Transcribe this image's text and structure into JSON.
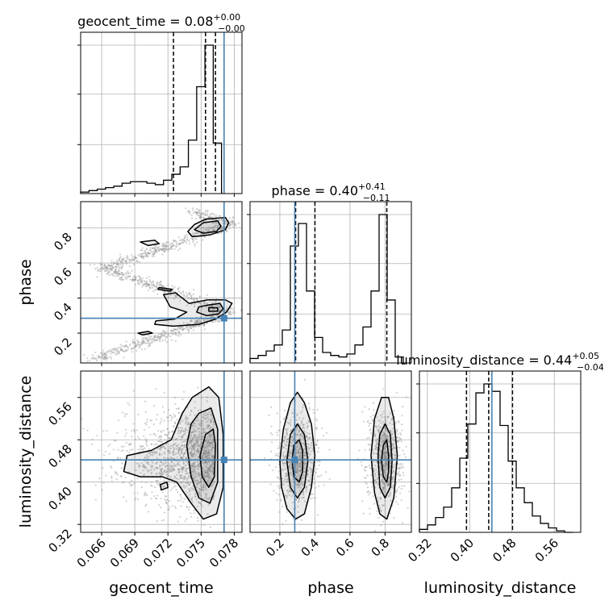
{
  "chart_data": {
    "type": "corner",
    "parameters": [
      {
        "name": "geocent_time",
        "title_main": "geocent_time = 0.08",
        "title_sup": "+0.00",
        "title_sub": "−0.00",
        "truth": 0.07708,
        "range": [
          0.0641,
          0.0787
        ],
        "ticks": [
          0.066,
          0.069,
          0.072,
          0.075,
          0.078
        ],
        "tick_labels": [
          "0.066",
          "0.069",
          "0.072",
          "0.075",
          "0.078"
        ],
        "quantiles": [
          0.0725,
          0.0754,
          0.0763
        ]
      },
      {
        "name": "phase",
        "title_main": "phase = 0.40",
        "title_sup": "+0.41",
        "title_sub": "−0.11",
        "truth": 0.285,
        "range": [
          0.03,
          0.95
        ],
        "ticks": [
          0.2,
          0.4,
          0.6,
          0.8
        ],
        "tick_labels": [
          "0.2",
          "0.4",
          "0.6",
          "0.8"
        ],
        "quantiles": [
          0.29,
          0.4,
          0.81
        ]
      },
      {
        "name": "luminosity_distance",
        "title_main": "luminosity_distance = 0.44",
        "title_sup": "+0.05",
        "title_sub": "−0.04",
        "truth": 0.442,
        "range": [
          0.305,
          0.61
        ],
        "ticks": [
          0.32,
          0.4,
          0.48,
          0.56
        ],
        "tick_labels": [
          "0.32",
          "0.40",
          "0.48",
          "0.56"
        ],
        "quantiles": [
          0.394,
          0.436,
          0.481
        ]
      }
    ],
    "histograms": [
      {
        "param": "geocent_time",
        "bin_edges": [
          0.0641,
          0.06485,
          0.0656,
          0.06635,
          0.0671,
          0.06785,
          0.0686,
          0.06935,
          0.0701,
          0.07085,
          0.0716,
          0.07235,
          0.0731,
          0.07385,
          0.0746,
          0.07535,
          0.0761,
          0.07685
        ],
        "counts": [
          0.01,
          0.02,
          0.03,
          0.04,
          0.05,
          0.07,
          0.08,
          0.08,
          0.07,
          0.06,
          0.09,
          0.13,
          0.18,
          0.36,
          0.72,
          1.0,
          0.34
        ]
      },
      {
        "param": "phase",
        "bin_edges": [
          0.03,
          0.076,
          0.122,
          0.168,
          0.214,
          0.26,
          0.306,
          0.352,
          0.398,
          0.444,
          0.49,
          0.536,
          0.582,
          0.628,
          0.674,
          0.72,
          0.766,
          0.812,
          0.858,
          0.904
        ],
        "counts": [
          0.03,
          0.05,
          0.08,
          0.12,
          0.22,
          0.78,
          0.93,
          0.48,
          0.17,
          0.07,
          0.05,
          0.04,
          0.06,
          0.12,
          0.24,
          0.48,
          0.99,
          0.42,
          0.04
        ]
      },
      {
        "param": "luminosity_distance",
        "bin_edges": [
          0.305,
          0.3203,
          0.3355,
          0.3508,
          0.366,
          0.3813,
          0.3965,
          0.4118,
          0.427,
          0.4423,
          0.4575,
          0.4728,
          0.488,
          0.5033,
          0.5185,
          0.5338,
          0.549,
          0.5643,
          0.5795,
          0.595
        ],
        "counts": [
          0.02,
          0.05,
          0.1,
          0.17,
          0.3,
          0.5,
          0.73,
          0.94,
          1.0,
          0.95,
          0.72,
          0.48,
          0.3,
          0.2,
          0.11,
          0.06,
          0.03,
          0.01,
          0.0
        ]
      }
    ],
    "contours_2d": [
      {
        "x": "geocent_time",
        "y": "phase",
        "levels": [
          [
            [
              0.0754,
              0.85
            ],
            [
              0.0772,
              0.86
            ],
            [
              0.0775,
              0.83
            ],
            [
              0.0772,
              0.79
            ],
            [
              0.0758,
              0.76
            ],
            [
              0.0742,
              0.75
            ],
            [
              0.0738,
              0.78
            ],
            [
              0.0744,
              0.82
            ]
          ],
          [
            [
              0.0752,
              0.83
            ],
            [
              0.0765,
              0.84
            ],
            [
              0.0768,
              0.81
            ],
            [
              0.0764,
              0.78
            ],
            [
              0.0752,
              0.77
            ],
            [
              0.0744,
              0.79
            ]
          ],
          [
            [
              0.0739,
              0.37
            ],
            [
              0.0756,
              0.39
            ],
            [
              0.0772,
              0.39
            ],
            [
              0.0778,
              0.37
            ],
            [
              0.0773,
              0.32
            ],
            [
              0.0763,
              0.28
            ],
            [
              0.0748,
              0.25
            ],
            [
              0.0725,
              0.24
            ],
            [
              0.0708,
              0.25
            ],
            [
              0.0709,
              0.27
            ],
            [
              0.0726,
              0.28
            ],
            [
              0.0737,
              0.32
            ],
            [
              0.0722,
              0.35
            ],
            [
              0.0716,
              0.42
            ],
            [
              0.0727,
              0.43
            ]
          ],
          [
            [
              0.0756,
              0.36
            ],
            [
              0.0767,
              0.37
            ],
            [
              0.077,
              0.34
            ],
            [
              0.0766,
              0.31
            ],
            [
              0.0755,
              0.3
            ],
            [
              0.0746,
              0.32
            ],
            [
              0.0748,
              0.35
            ]
          ],
          [
            [
              0.0757,
              0.345
            ],
            [
              0.0765,
              0.345
            ],
            [
              0.0765,
              0.325
            ],
            [
              0.0757,
              0.325
            ]
          ],
          [
            [
              0.0693,
              0.2
            ],
            [
              0.0702,
              0.21
            ],
            [
              0.0706,
              0.2
            ],
            [
              0.0697,
              0.19
            ]
          ],
          [
            [
              0.0695,
              0.72
            ],
            [
              0.0708,
              0.73
            ],
            [
              0.0712,
              0.71
            ],
            [
              0.0702,
              0.7
            ]
          ],
          [
            [
              0.0712,
              0.46
            ],
            [
              0.0724,
              0.45
            ],
            [
              0.0722,
              0.44
            ],
            [
              0.0711,
              0.45
            ]
          ]
        ]
      },
      {
        "x": "geocent_time",
        "y": "luminosity_distance",
        "levels": [
          [
            [
              0.0742,
              0.56
            ],
            [
              0.0757,
              0.58
            ],
            [
              0.0766,
              0.56
            ],
            [
              0.077,
              0.49
            ],
            [
              0.077,
              0.39
            ],
            [
              0.0764,
              0.34
            ],
            [
              0.0752,
              0.33
            ],
            [
              0.0741,
              0.36
            ],
            [
              0.0728,
              0.4
            ],
            [
              0.0715,
              0.41
            ],
            [
              0.0695,
              0.41
            ],
            [
              0.068,
              0.42
            ],
            [
              0.0683,
              0.45
            ],
            [
              0.0705,
              0.46
            ],
            [
              0.0723,
              0.48
            ],
            [
              0.0733,
              0.53
            ]
          ],
          [
            [
              0.0748,
              0.53
            ],
            [
              0.0759,
              0.54
            ],
            [
              0.0765,
              0.5
            ],
            [
              0.0765,
              0.4
            ],
            [
              0.0758,
              0.36
            ],
            [
              0.0748,
              0.37
            ],
            [
              0.0741,
              0.41
            ],
            [
              0.0737,
              0.47
            ],
            [
              0.0741,
              0.51
            ]
          ],
          [
            [
              0.0754,
              0.49
            ],
            [
              0.0761,
              0.5
            ],
            [
              0.0763,
              0.47
            ],
            [
              0.0762,
              0.41
            ],
            [
              0.0757,
              0.39
            ],
            [
              0.0751,
              0.41
            ],
            [
              0.0749,
              0.45
            ]
          ],
          [
            [
              0.0713,
              0.395
            ],
            [
              0.0719,
              0.4
            ],
            [
              0.072,
              0.39
            ],
            [
              0.0714,
              0.385
            ]
          ]
        ]
      },
      {
        "x": "phase",
        "y": "luminosity_distance",
        "levels": [
          [
            [
              0.2,
              0.44
            ],
            [
              0.22,
              0.5
            ],
            [
              0.26,
              0.55
            ],
            [
              0.3,
              0.57
            ],
            [
              0.34,
              0.55
            ],
            [
              0.38,
              0.51
            ],
            [
              0.4,
              0.45
            ],
            [
              0.38,
              0.39
            ],
            [
              0.34,
              0.34
            ],
            [
              0.29,
              0.33
            ],
            [
              0.24,
              0.35
            ],
            [
              0.21,
              0.39
            ]
          ],
          [
            [
              0.24,
              0.44
            ],
            [
              0.26,
              0.49
            ],
            [
              0.3,
              0.51
            ],
            [
              0.34,
              0.49
            ],
            [
              0.36,
              0.44
            ],
            [
              0.34,
              0.39
            ],
            [
              0.3,
              0.37
            ],
            [
              0.26,
              0.39
            ]
          ],
          [
            [
              0.27,
              0.44
            ],
            [
              0.28,
              0.47
            ],
            [
              0.31,
              0.48
            ],
            [
              0.33,
              0.46
            ],
            [
              0.33,
              0.42
            ],
            [
              0.31,
              0.4
            ],
            [
              0.28,
              0.41
            ]
          ],
          [
            [
              0.72,
              0.45
            ],
            [
              0.74,
              0.52
            ],
            [
              0.78,
              0.56
            ],
            [
              0.82,
              0.56
            ],
            [
              0.85,
              0.52
            ],
            [
              0.87,
              0.45
            ],
            [
              0.85,
              0.37
            ],
            [
              0.81,
              0.33
            ],
            [
              0.77,
              0.34
            ],
            [
              0.74,
              0.38
            ]
          ],
          [
            [
              0.76,
              0.45
            ],
            [
              0.77,
              0.49
            ],
            [
              0.8,
              0.51
            ],
            [
              0.83,
              0.49
            ],
            [
              0.84,
              0.44
            ],
            [
              0.83,
              0.39
            ],
            [
              0.8,
              0.37
            ],
            [
              0.77,
              0.39
            ]
          ],
          [
            [
              0.78,
              0.44
            ],
            [
              0.79,
              0.47
            ],
            [
              0.81,
              0.48
            ],
            [
              0.82,
              0.45
            ],
            [
              0.82,
              0.42
            ],
            [
              0.81,
              0.4
            ],
            [
              0.79,
              0.41
            ]
          ]
        ]
      }
    ],
    "line_color": "#4682b4",
    "grid": true
  }
}
